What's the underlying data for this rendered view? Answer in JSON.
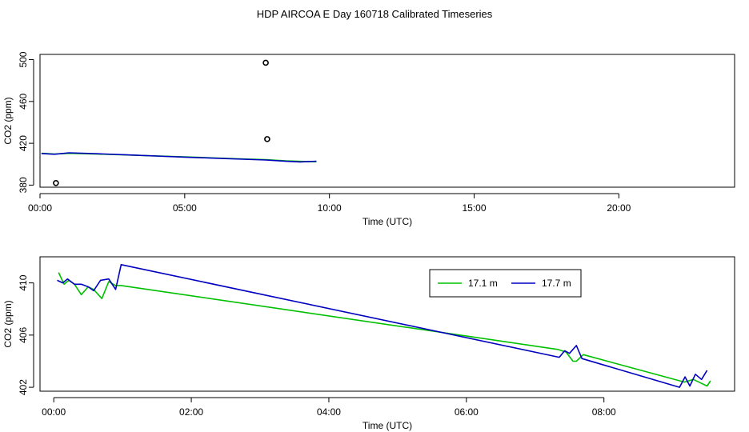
{
  "title": "HDP AIRCOA E  Day 160718  Calibrated Timeseries",
  "chart_data": [
    {
      "type": "line",
      "xlabel": "Time (UTC)",
      "ylabel": "CO2 (ppm)",
      "xlim": [
        0,
        24
      ],
      "ylim": [
        378,
        505
      ],
      "x_ticks": [
        0,
        5,
        10,
        15,
        20
      ],
      "x_tick_labels": [
        "00:00",
        "05:00",
        "10:00",
        "15:00",
        "20:00"
      ],
      "y_ticks": [
        380,
        420,
        460,
        500
      ],
      "y_tick_labels": [
        "380",
        "420",
        "460",
        "500"
      ],
      "grid": false,
      "series": [
        {
          "color": "#00c000",
          "x": [
            0.05,
            0.5,
            1.0,
            2.0,
            3.0,
            4.0,
            5.0,
            6.0,
            7.0,
            7.8,
            8.5,
            9.0,
            9.55
          ],
          "y": [
            410.5,
            409.7,
            410.4,
            409.7,
            408.8,
            407.9,
            407.0,
            406.0,
            405.0,
            404.3,
            403.2,
            402.7,
            402.3
          ]
        },
        {
          "color": "#0000c0",
          "x": [
            0.05,
            0.5,
            1.0,
            2.0,
            3.0,
            4.0,
            5.0,
            6.0,
            7.0,
            7.8,
            8.5,
            9.0,
            9.55
          ],
          "y": [
            410.2,
            409.5,
            410.9,
            410.0,
            408.9,
            407.8,
            406.8,
            405.8,
            404.8,
            404.0,
            402.8,
            402.2,
            402.9
          ]
        }
      ],
      "outliers": {
        "marker": "open-circle",
        "x": [
          0.55,
          7.8,
          7.85
        ],
        "y": [
          382,
          497,
          424
        ]
      }
    },
    {
      "type": "line",
      "xlabel": "Time (UTC)",
      "ylabel": "CO2 (ppm)",
      "xlim": [
        -0.2,
        9.9
      ],
      "ylim": [
        401.7,
        412.0
      ],
      "x_ticks": [
        0,
        2,
        4,
        6,
        8
      ],
      "x_tick_labels": [
        "00:00",
        "02:00",
        "04:00",
        "06:00",
        "08:00"
      ],
      "y_ticks": [
        402,
        406,
        410
      ],
      "y_tick_labels": [
        "402",
        "406",
        "410"
      ],
      "grid": false,
      "legend": {
        "position": "top-right",
        "entries": [
          "17.1 m",
          "17.7 m"
        ]
      },
      "series": [
        {
          "name": "17.1 m",
          "color": "#00c000",
          "x": [
            0.07,
            0.15,
            0.22,
            0.3,
            0.4,
            0.5,
            0.58,
            0.7,
            0.8,
            0.9,
            0.98,
            7.33,
            7.45,
            7.55,
            7.6,
            7.7,
            9.17,
            9.3,
            9.42,
            9.5,
            9.55
          ],
          "y": [
            410.8,
            409.9,
            410.2,
            409.9,
            409.1,
            409.7,
            409.5,
            408.8,
            410.1,
            409.8,
            409.8,
            404.9,
            404.7,
            404.0,
            404.0,
            404.5,
            402.4,
            402.6,
            402.3,
            402.1,
            402.5
          ]
        },
        {
          "name": "17.7 m",
          "color": "#0000c0",
          "x": [
            0.05,
            0.13,
            0.2,
            0.3,
            0.4,
            0.5,
            0.58,
            0.68,
            0.8,
            0.9,
            0.98,
            7.35,
            7.43,
            7.5,
            7.6,
            7.68,
            9.1,
            9.18,
            9.25,
            9.33,
            9.42,
            9.5
          ],
          "y": [
            410.2,
            410.0,
            410.3,
            409.9,
            409.9,
            409.7,
            409.4,
            410.2,
            410.3,
            409.5,
            411.4,
            404.3,
            404.8,
            404.6,
            405.2,
            404.2,
            402.0,
            402.8,
            402.1,
            403.0,
            402.6,
            403.3
          ]
        }
      ]
    }
  ]
}
